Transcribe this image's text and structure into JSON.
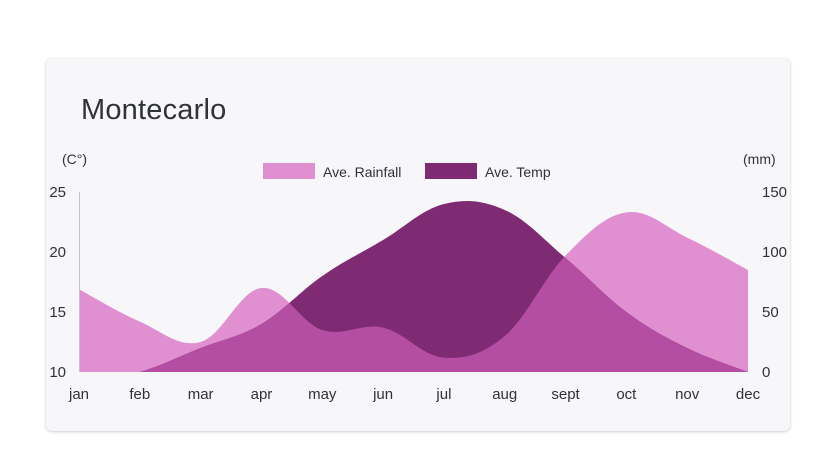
{
  "colors": {
    "rainfall": "#e08fd1",
    "temp": "#7e2b74",
    "overlap": "#b34ea3",
    "card_background": "#f7f6f9",
    "text": "#2f3237"
  },
  "chart_data": {
    "type": "area",
    "title": "Montecarlo",
    "categories": [
      "jan",
      "feb",
      "mar",
      "apr",
      "may",
      "jun",
      "jul",
      "aug",
      "sept",
      "oct",
      "nov",
      "dec"
    ],
    "left_axis": {
      "unit_label": "(C°)",
      "ticks": [
        10,
        15,
        20,
        25
      ],
      "range": [
        10,
        25
      ]
    },
    "right_axis": {
      "unit_label": "(mm)",
      "ticks": [
        0,
        50,
        100,
        150
      ],
      "range": [
        0,
        150
      ]
    },
    "legend": {
      "placement": "top-center"
    },
    "grid": false,
    "series": [
      {
        "name": "Ave. Rainfall",
        "axis": "right",
        "color": "#e08fd1",
        "values": [
          69,
          42,
          25,
          70,
          35,
          37,
          12,
          30,
          97,
          133,
          112,
          85
        ]
      },
      {
        "name": "Ave. Temp",
        "axis": "left",
        "color": "#7e2b74",
        "values": [
          9.0,
          10.0,
          12.0,
          14.0,
          18.0,
          21.0,
          24.0,
          23.5,
          19.5,
          15.0,
          12.0,
          10.0
        ]
      }
    ]
  }
}
